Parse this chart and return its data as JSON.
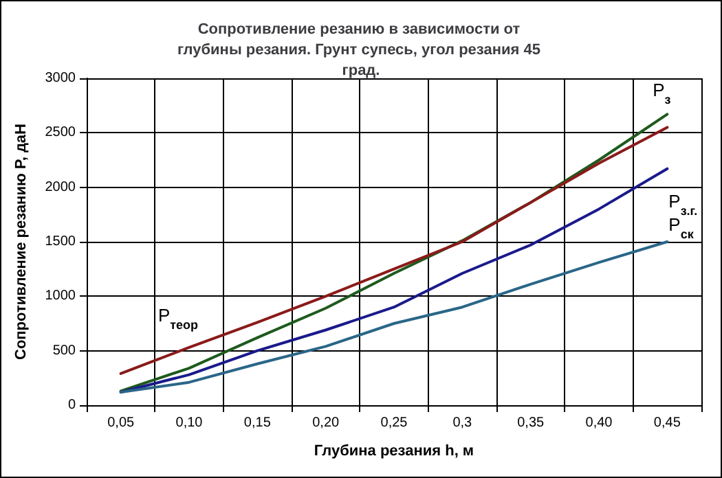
{
  "chart_data": {
    "type": "line",
    "title": "Сопротивление резанию в зависимости от глубины резания. Грунт супесь, угол резания 45 град.",
    "xlabel": "Глубина резания h, м",
    "ylabel": "Сопротивление резанию P, даН",
    "categories": [
      "0,05",
      "0,10",
      "0,15",
      "0,20",
      "0,25",
      "0,3",
      "0,35",
      "0,40",
      "0,45"
    ],
    "series": [
      {
        "name": "P$_{з}$",
        "color": "#1e5a1e",
        "values": [
          130,
          340,
          620,
          890,
          1210,
          1510,
          1860,
          2250,
          2670
        ]
      },
      {
        "name": "P$_{теор}$",
        "color": "#8b1a1a",
        "values": [
          290,
          530,
          760,
          1000,
          1250,
          1500,
          1860,
          2220,
          2550
        ]
      },
      {
        "name": "P$_{з.г.}$",
        "color": "#1a1a8c",
        "values": [
          120,
          280,
          500,
          690,
          900,
          1210,
          1470,
          1800,
          2170
        ]
      },
      {
        "name": "P$_{ск}$",
        "color": "#2a6688",
        "values": [
          120,
          210,
          380,
          540,
          750,
          900,
          1110,
          1310,
          1500
        ]
      }
    ],
    "ylim": [
      0,
      3000
    ],
    "yticks": [
      0,
      500,
      1000,
      1500,
      2000,
      2500,
      3000
    ],
    "grid": true,
    "legend": false,
    "marker": "none",
    "line_style": "solid"
  }
}
